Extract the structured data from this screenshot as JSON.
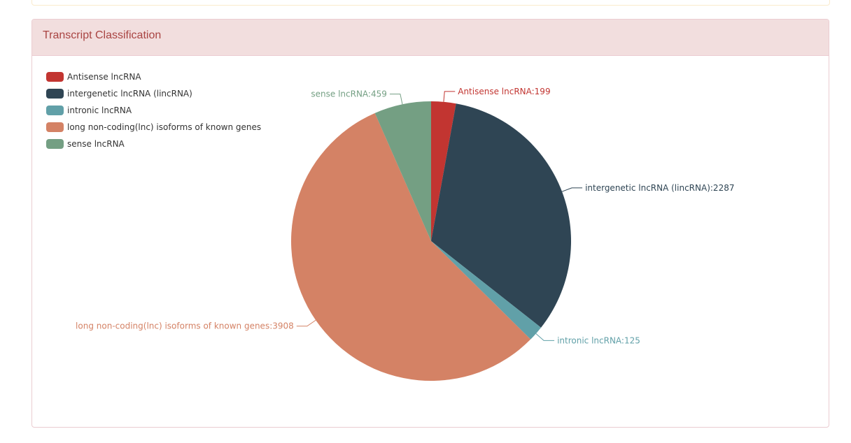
{
  "panel": {
    "title": "Transcript Classification"
  },
  "legend": [
    {
      "label": "Antisense lncRNA",
      "color": "#c23531"
    },
    {
      "label": "intergenetic lncRNA (lincRNA)",
      "color": "#2f4554"
    },
    {
      "label": "intronic lncRNA",
      "color": "#61a0a8"
    },
    {
      "label": "long non-coding(lnc) isoforms of known genes",
      "color": "#d48265"
    },
    {
      "label": "sense lncRNA",
      "color": "#749f83"
    }
  ],
  "labels": {
    "antisense": "Antisense lncRNA:199",
    "intergenetic": "intergenetic lncRNA (lincRNA):2287",
    "intronic": "intronic lncRNA:125",
    "lnc_isoforms": "long non-coding(lnc) isoforms of known genes:3908",
    "sense": "sense lncRNA:459"
  },
  "chart_data": {
    "type": "pie",
    "title": "Transcript Classification",
    "categories": [
      "Antisense lncRNA",
      "intergenetic lncRNA (lincRNA)",
      "intronic lncRNA",
      "long non-coding(lnc) isoforms of known genes",
      "sense lncRNA"
    ],
    "values": [
      199,
      2287,
      125,
      3908,
      459
    ],
    "colors": [
      "#c23531",
      "#2f4554",
      "#61a0a8",
      "#d48265",
      "#749f83"
    ],
    "legend_position": "top-left"
  }
}
